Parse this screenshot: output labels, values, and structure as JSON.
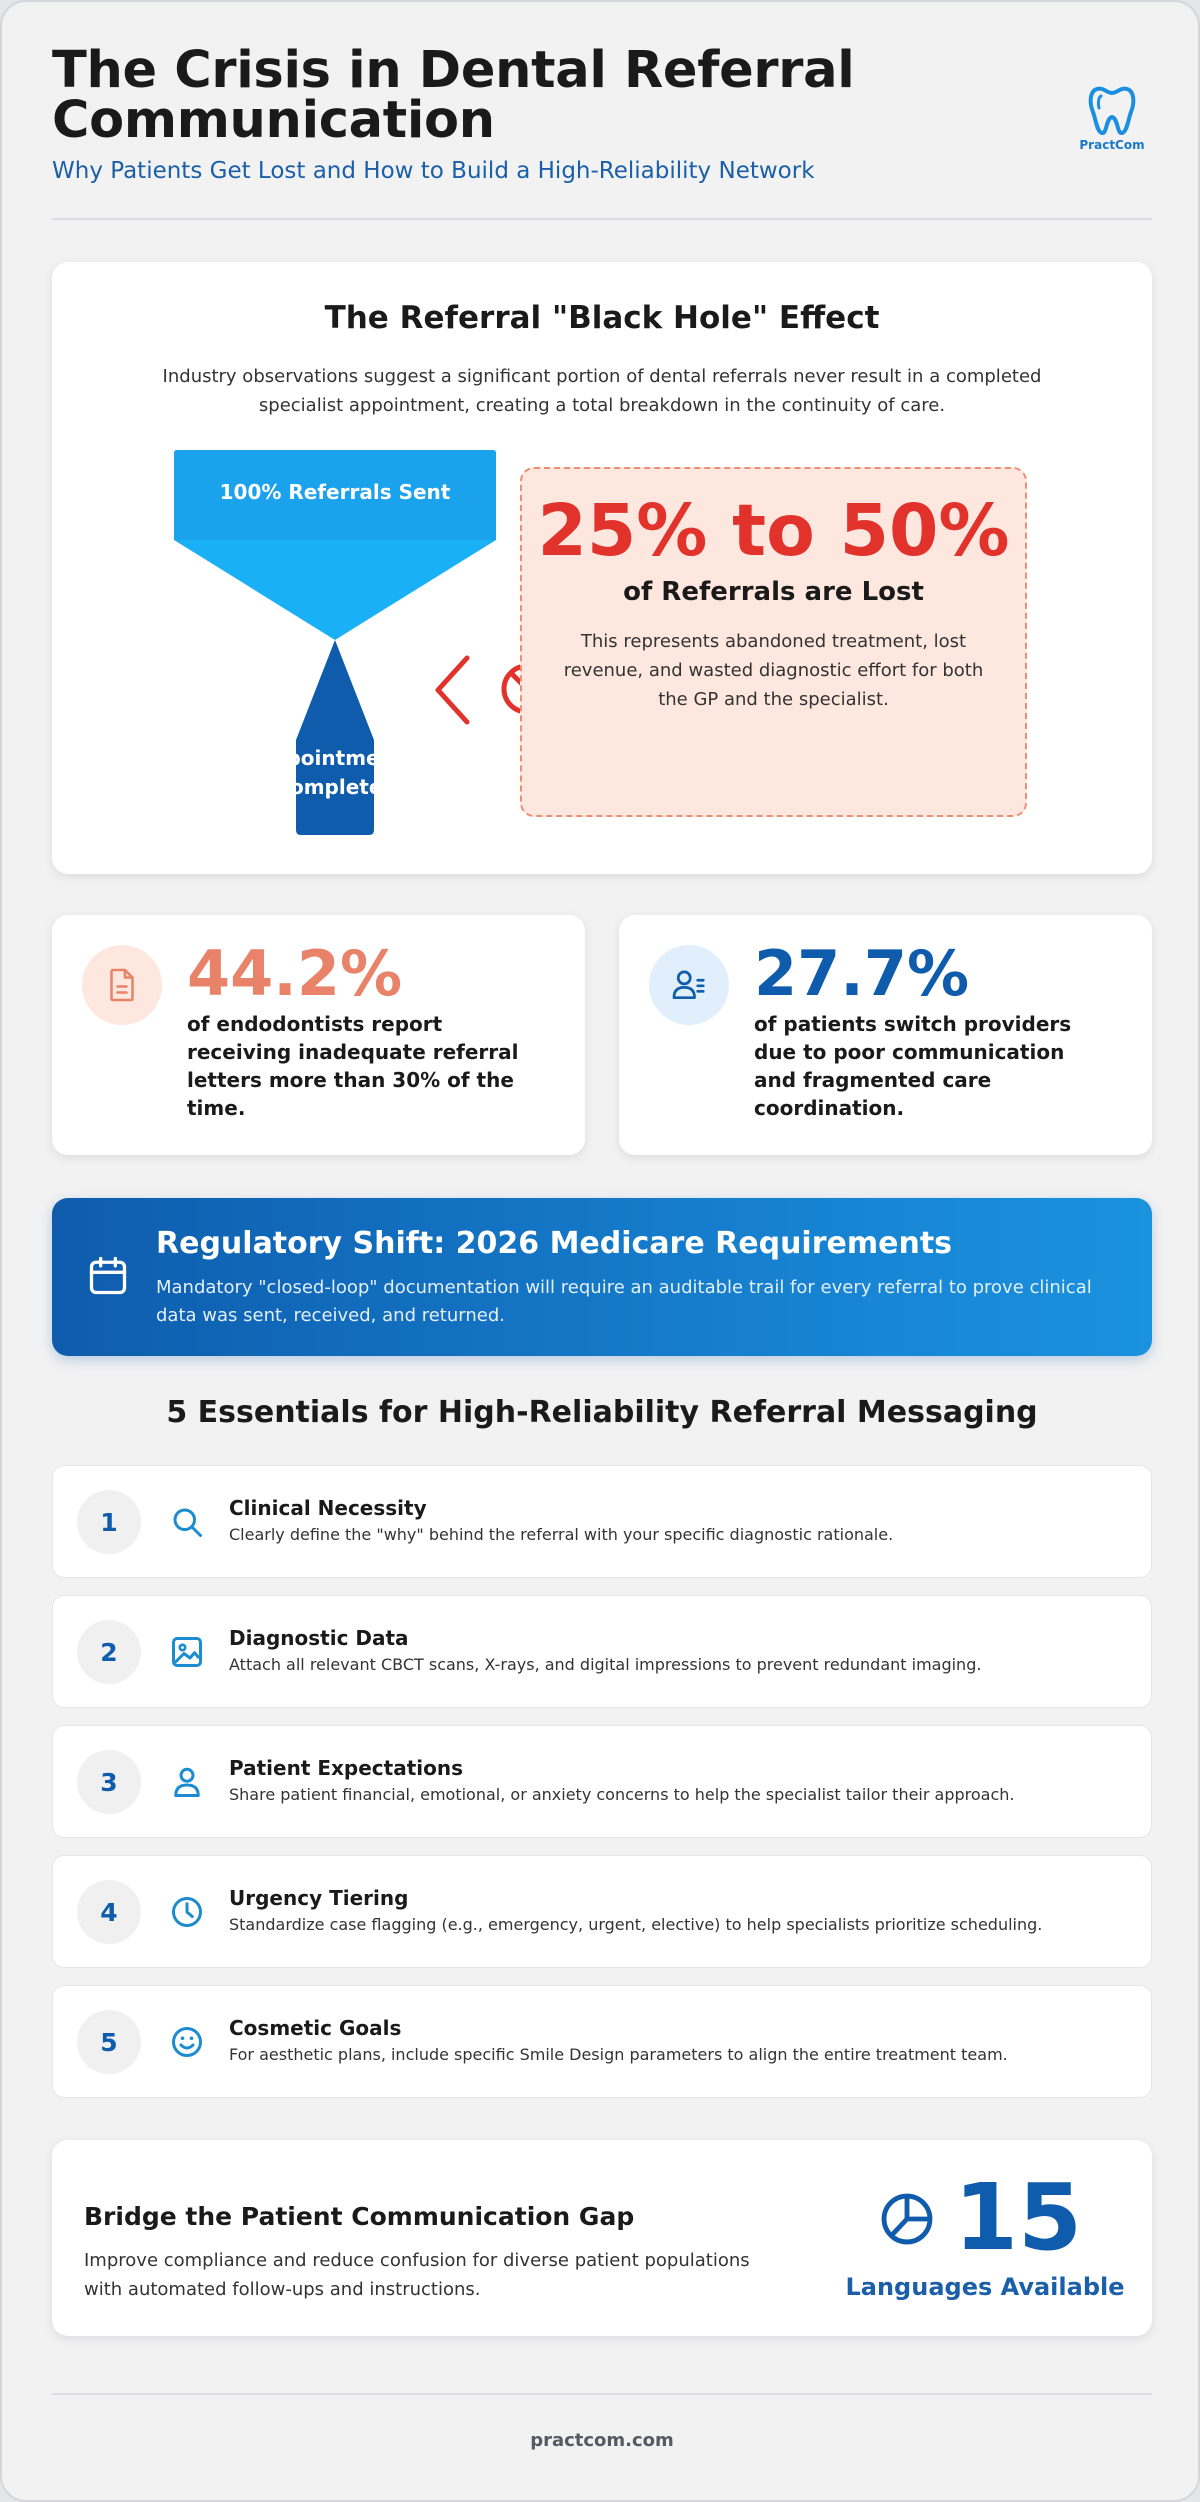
{
  "header": {
    "title": "The Crisis in Dental Referral Communication",
    "subtitle": "Why Patients Get Lost and How to Build a High-Reliability Network",
    "logo_text": "PractCom"
  },
  "black_hole": {
    "title": "The Referral \"Black Hole\" Effect",
    "text": "Industry observations suggest a significant portion of dental referrals never result in a completed specialist appointment, creating a total breakdown in the continuity of care.",
    "funnel_top_label": "100% Referrals Sent",
    "funnel_bottom_line1": "Appointments",
    "funnel_bottom_line2": "Completed",
    "lost_value": "25% to 50%",
    "lost_label": "of Referrals are Lost",
    "lost_text": "This represents abandoned treatment, lost revenue, and wasted diagnostic effort for both the GP and the specialist."
  },
  "stats": [
    {
      "value": "44.2%",
      "text": "of endodontists report receiving inadequate referral letters more than 30% of the time.",
      "icon": "document-icon",
      "color": "#e8836a"
    },
    {
      "value": "27.7%",
      "text": "of patients switch providers due to poor communication and fragmented care coordination.",
      "icon": "user-list-icon",
      "color": "#0f5cad"
    }
  ],
  "regulatory": {
    "title": "Regulatory Shift: 2026 Medicare Requirements",
    "text": "Mandatory \"closed-loop\" documentation will require an auditable trail for every referral to prove clinical data was sent, received, and returned."
  },
  "essentials": {
    "heading": "5 Essentials for High-Reliability Referral Messaging",
    "items": [
      {
        "num": "1",
        "title": "Clinical Necessity",
        "desc": "Clearly define the \"why\" behind the referral with your specific diagnostic rationale.",
        "icon": "search-icon"
      },
      {
        "num": "2",
        "title": "Diagnostic Data",
        "desc": "Attach all relevant CBCT scans, X-rays, and digital impressions to prevent redundant imaging.",
        "icon": "image-icon"
      },
      {
        "num": "3",
        "title": "Patient Expectations",
        "desc": "Share patient financial, emotional, or anxiety concerns to help the specialist tailor their approach.",
        "icon": "user-icon"
      },
      {
        "num": "4",
        "title": "Urgency Tiering",
        "desc": "Standardize case flagging (e.g., emergency, urgent, elective) to help specialists prioritize scheduling.",
        "icon": "clock-icon"
      },
      {
        "num": "5",
        "title": "Cosmetic Goals",
        "desc": "For aesthetic plans, include specific Smile Design parameters to align the entire treatment team.",
        "icon": "smile-icon"
      }
    ]
  },
  "languages": {
    "title": "Bridge the Patient Communication Gap",
    "text": "Improve compliance and reduce confusion for diverse patient populations with automated follow-ups and instructions.",
    "count": "15",
    "label": "Languages Available"
  },
  "footer": {
    "text": "practcom.com"
  },
  "colors": {
    "accent": "#0f5cad",
    "alert": "#e2322c",
    "sky": "#1ab0f5",
    "coral": "#e8836a"
  }
}
